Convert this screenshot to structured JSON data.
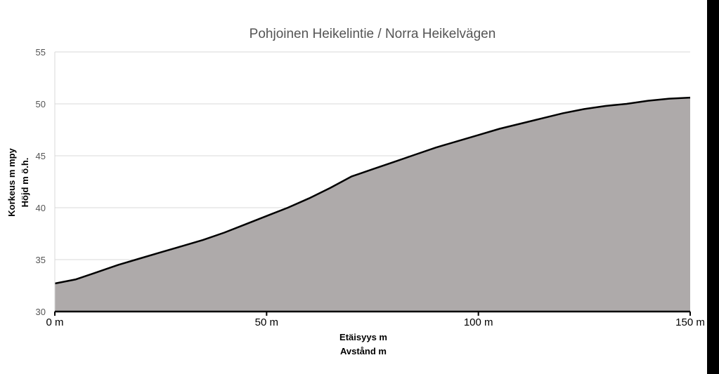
{
  "chart_data": {
    "type": "area",
    "title": "Pohjoinen Heikelintie / Norra Heikelvägen",
    "xlabel": [
      "Etäisyys m",
      "Avstånd m"
    ],
    "ylabel": [
      "Korkeus m mpy",
      "Höjd m ö.h."
    ],
    "xlim": [
      0,
      150
    ],
    "ylim": [
      30,
      55
    ],
    "x_ticks": [
      {
        "value": 0,
        "label": "0 m"
      },
      {
        "value": 50,
        "label": "50 m"
      },
      {
        "value": 100,
        "label": "100 m"
      },
      {
        "value": 150,
        "label": "150 m"
      }
    ],
    "y_ticks": [
      {
        "value": 30,
        "label": "30"
      },
      {
        "value": 35,
        "label": "35"
      },
      {
        "value": 40,
        "label": "40"
      },
      {
        "value": 45,
        "label": "45"
      },
      {
        "value": 50,
        "label": "50"
      },
      {
        "value": 55,
        "label": "55"
      }
    ],
    "grid": true,
    "legend": "none",
    "fill_color": "#aeaaaa",
    "line_color": "#000000",
    "grid_color": "#d9d9d9",
    "x": [
      0,
      5,
      10,
      15,
      20,
      25,
      30,
      35,
      40,
      45,
      50,
      55,
      60,
      65,
      70,
      75,
      80,
      85,
      90,
      95,
      100,
      105,
      110,
      115,
      120,
      125,
      130,
      135,
      140,
      145,
      150
    ],
    "y": [
      32.7,
      33.1,
      33.8,
      34.5,
      35.1,
      35.7,
      36.3,
      36.9,
      37.6,
      38.4,
      39.2,
      40.0,
      40.9,
      41.9,
      43.0,
      43.7,
      44.4,
      45.1,
      45.8,
      46.4,
      47.0,
      47.6,
      48.1,
      48.6,
      49.1,
      49.5,
      49.8,
      50.0,
      50.3,
      50.5,
      50.6
    ]
  }
}
